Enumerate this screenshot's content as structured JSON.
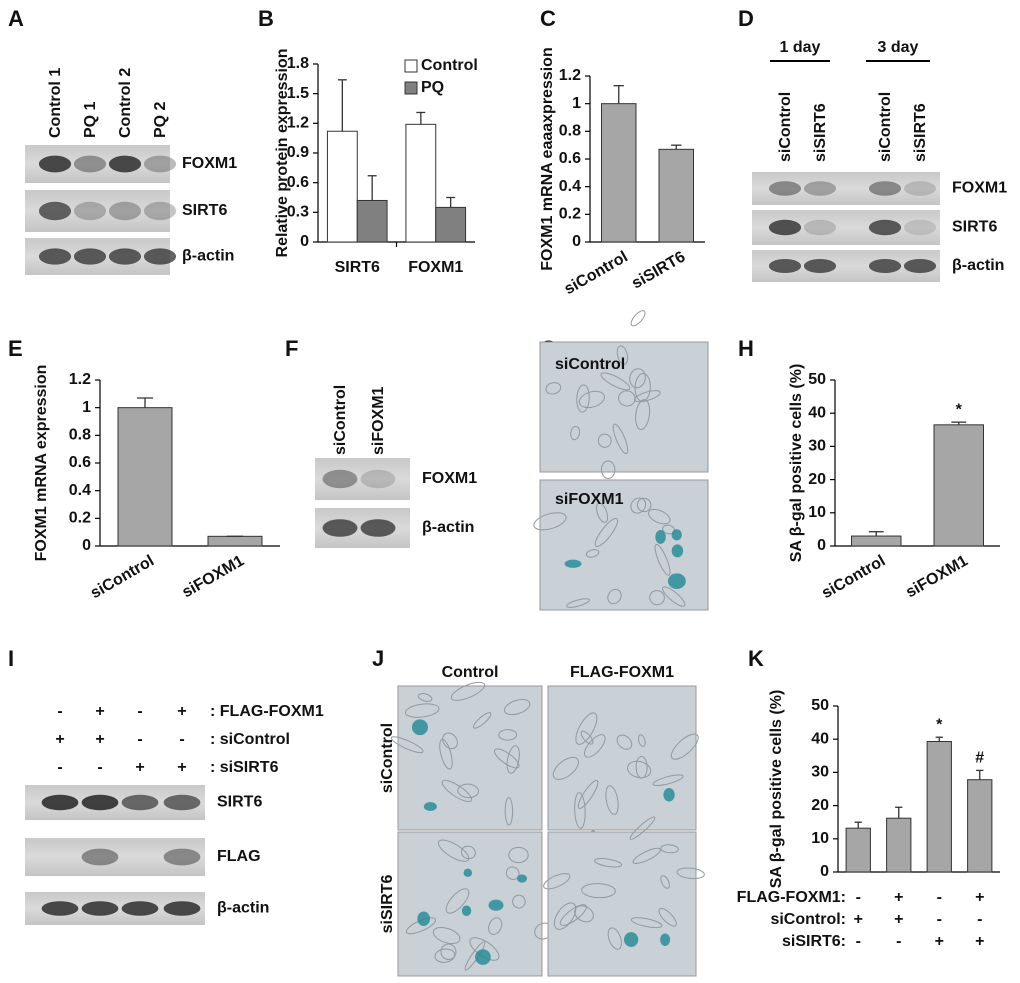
{
  "chart_data": [
    {
      "type": "bar",
      "panel": "B",
      "ylabel": "Relative protein expression",
      "categories": [
        "SIRT6",
        "FOXM1"
      ],
      "series": [
        {
          "name": "Control",
          "color": "#ffffff",
          "values": [
            1.12,
            1.19
          ],
          "errors": [
            0.52,
            0.12
          ]
        },
        {
          "name": "PQ",
          "color": "#808080",
          "values": [
            0.42,
            0.35
          ],
          "errors": [
            0.25,
            0.1
          ]
        }
      ],
      "ylim": [
        0,
        1.8
      ],
      "yticks": [
        0,
        0.3,
        0.6,
        0.9,
        1.2,
        1.5,
        1.8
      ],
      "legend": "top-right"
    },
    {
      "type": "bar",
      "panel": "C",
      "ylabel": "FOXM1 mRNA eaaaxpression",
      "categories": [
        "siControl",
        "siSIRT6"
      ],
      "values": [
        1,
        0.67
      ],
      "errors": [
        0.13,
        0.03
      ],
      "color": "#a6a6a6",
      "ylim": [
        0,
        1.2
      ],
      "yticks": [
        0,
        0.2,
        0.4,
        0.6,
        0.8,
        1,
        1.2
      ]
    },
    {
      "type": "bar",
      "panel": "E",
      "ylabel": "FOXM1 mRNA expression",
      "categories": [
        "siControl",
        "siFOXM1"
      ],
      "values": [
        1,
        0.07
      ],
      "errors": [
        0.07,
        0
      ],
      "color": "#a6a6a6",
      "ylim": [
        0,
        1.2
      ],
      "yticks": [
        0,
        0.2,
        0.4,
        0.6,
        0.8,
        1,
        1.2
      ]
    },
    {
      "type": "bar",
      "panel": "H",
      "ylabel": "SA β-gal positive cells (%)",
      "categories": [
        "siControl",
        "siFOXM1"
      ],
      "values": [
        3,
        36.5
      ],
      "errors": [
        1.3,
        0.8
      ],
      "annotations": [
        null,
        "*"
      ],
      "color": "#a6a6a6",
      "ylim": [
        0,
        50
      ],
      "yticks": [
        0,
        10,
        20,
        30,
        40,
        50
      ]
    },
    {
      "type": "bar",
      "panel": "K",
      "ylabel": "SA β-gal positive cells (%)",
      "categories": [
        null,
        null,
        null,
        null
      ],
      "values": [
        13.2,
        16.2,
        39.3,
        27.8
      ],
      "errors": [
        1.8,
        3.3,
        1.3,
        2.8
      ],
      "annotations": [
        null,
        null,
        "*",
        "#"
      ],
      "color": "#a6a6a6",
      "ylim": [
        0,
        50
      ],
      "yticks": [
        0,
        10,
        20,
        30,
        40,
        50
      ],
      "condition_rows": [
        {
          "label": "FLAG-FOXM1:",
          "signs": [
            "-",
            "+",
            "-",
            "+"
          ]
        },
        {
          "label": "siControl:",
          "signs": [
            "+",
            "+",
            "-",
            "-"
          ]
        },
        {
          "label": "siSIRT6:",
          "signs": [
            "-",
            "-",
            "+",
            "+"
          ]
        }
      ]
    }
  ],
  "blots": [
    {
      "panel": "A",
      "lanes": [
        "Control 1",
        "PQ 1",
        "Control 2",
        "PQ 2"
      ],
      "bands": [
        "FOXM1",
        "SIRT6",
        "β-actin"
      ]
    },
    {
      "panel": "D",
      "groups": [
        "1 day",
        "3 day"
      ],
      "lanes": [
        "siControl",
        "siSIRT6",
        "siControl",
        "siSIRT6"
      ],
      "bands": [
        "FOXM1",
        "SIRT6",
        "β-actin"
      ]
    },
    {
      "panel": "F",
      "lanes": [
        "siControl",
        "siFOXM1"
      ],
      "bands": [
        "FOXM1",
        "β-actin"
      ]
    },
    {
      "panel": "I",
      "conditions": [
        {
          "label": ": FLAG-FOXM1",
          "signs": [
            "-",
            "+",
            "-",
            "+"
          ]
        },
        {
          "label": ": siControl",
          "signs": [
            "+",
            "+",
            "-",
            "-"
          ]
        },
        {
          "label": ": siSIRT6",
          "signs": [
            "-",
            "-",
            "+",
            "+"
          ]
        }
      ],
      "bands": [
        "SIRT6",
        "FLAG",
        "β-actin"
      ]
    }
  ],
  "micrographs": [
    {
      "panel": "G",
      "labels": [
        "siControl",
        "siFOXM1"
      ]
    },
    {
      "panel": "J",
      "columns": [
        "Control",
        "FLAG-FOXM1"
      ],
      "rows": [
        "siControl",
        "siSIRT6"
      ]
    }
  ]
}
